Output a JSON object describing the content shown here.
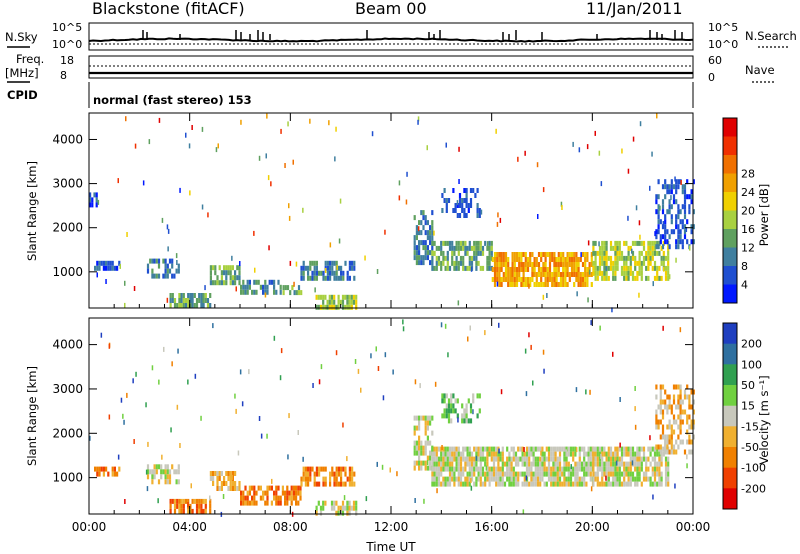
{
  "header": {
    "station": "Blackstone (fitACF)",
    "beam": "Beam 00",
    "date": "11/Jan/2011"
  },
  "top_panels": {
    "nsky_label": "N.Sky",
    "nsky_ticks": [
      "10^5",
      "10^0"
    ],
    "nsearch_label": "N.Search",
    "nsearch_ticks": [
      "10^5",
      "10^0"
    ],
    "freq_label": "Freq.",
    "freq_unit": "[MHz]",
    "freq_ticks": [
      "18",
      "8"
    ],
    "nave_label": "Nave",
    "nave_ticks": [
      "60",
      "0"
    ],
    "cpid_label": "CPID",
    "cpid_text": "normal (fast stereo) 153"
  },
  "chart_data": [
    {
      "type": "heatmap",
      "parameter": "power",
      "xlabel": "",
      "ylabel": "Slant Range [km]",
      "x_ticks": [
        "00:00",
        "04:00",
        "08:00",
        "12:00",
        "16:00",
        "20:00",
        "00:00"
      ],
      "xlim_hours": [
        0,
        24
      ],
      "y_ticks": [
        1000,
        2000,
        3000,
        4000
      ],
      "ylim": [
        180,
        4600
      ],
      "colorbar": {
        "label": "Power [dB]",
        "ticks": [
          "4",
          "8",
          "12",
          "16",
          "20",
          "24",
          "28"
        ],
        "colors": [
          "#0018ff",
          "#1f4fd0",
          "#3f7f9f",
          "#5fa05f",
          "#a8d040",
          "#f0d000",
          "#f0a000",
          "#f07000",
          "#f03000",
          "#e00000"
        ]
      },
      "features": [
        {
          "t0": 0.0,
          "t1": 0.3,
          "r0": 2500,
          "r1": 2800,
          "level": 1,
          "density": 0.5
        },
        {
          "t0": 0.2,
          "t1": 1.2,
          "r0": 1050,
          "r1": 1250,
          "level": 1,
          "density": 0.7
        },
        {
          "t0": 2.3,
          "t1": 3.6,
          "r0": 950,
          "r1": 1300,
          "level": 2,
          "density": 0.6
        },
        {
          "t0": 3.2,
          "t1": 4.8,
          "r0": 230,
          "r1": 520,
          "level": 3,
          "density": 0.8
        },
        {
          "t0": 4.8,
          "t1": 6.0,
          "r0": 700,
          "r1": 1150,
          "level": 3,
          "density": 0.7
        },
        {
          "t0": 6.0,
          "t1": 7.6,
          "r0": 480,
          "r1": 820,
          "level": 2,
          "density": 0.6
        },
        {
          "t0": 7.6,
          "t1": 8.4,
          "r0": 480,
          "r1": 700,
          "level": 3,
          "density": 0.7
        },
        {
          "t0": 8.4,
          "t1": 10.5,
          "r0": 800,
          "r1": 1250,
          "level": 2,
          "density": 0.6
        },
        {
          "t0": 9.0,
          "t1": 10.6,
          "r0": 250,
          "r1": 480,
          "level": 4,
          "density": 0.8
        },
        {
          "t0": 12.9,
          "t1": 13.6,
          "r0": 1200,
          "r1": 2400,
          "level": 2,
          "density": 0.6
        },
        {
          "t0": 13.6,
          "t1": 16.0,
          "r0": 1100,
          "r1": 1700,
          "level": 3,
          "density": 0.7
        },
        {
          "t0": 16.0,
          "t1": 20.0,
          "r0": 700,
          "r1": 1450,
          "level": 6,
          "density": 0.8
        },
        {
          "t0": 20.0,
          "t1": 23.0,
          "r0": 900,
          "r1": 1700,
          "level": 4,
          "density": 0.7
        },
        {
          "t0": 22.5,
          "t1": 24.0,
          "r0": 1600,
          "r1": 3100,
          "level": 1,
          "density": 0.5
        },
        {
          "t0": 14.0,
          "t1": 15.5,
          "r0": 2300,
          "r1": 2900,
          "level": 1,
          "density": 0.4
        }
      ]
    },
    {
      "type": "heatmap",
      "parameter": "velocity",
      "xlabel": "Time UT",
      "ylabel": "Slant Range [km]",
      "x_ticks": [
        "00:00",
        "04:00",
        "08:00",
        "12:00",
        "16:00",
        "20:00",
        "00:00"
      ],
      "xlim_hours": [
        0,
        24
      ],
      "y_ticks": [
        1000,
        2000,
        3000,
        4000
      ],
      "ylim": [
        180,
        4600
      ],
      "colorbar": {
        "label": "Velocity [m s⁻¹]",
        "ticks": [
          "200",
          "100",
          "50",
          "15",
          "-15",
          "-50",
          "-100",
          "-200"
        ],
        "colors": [
          "#1f3fc0",
          "#2f70a0",
          "#30a050",
          "#70d040",
          "#c8c8bc",
          "#f0b030",
          "#f08000",
          "#f04000",
          "#e00000"
        ]
      },
      "features": [
        {
          "t0": 0.2,
          "t1": 1.2,
          "r0": 1050,
          "r1": 1250,
          "level": 6,
          "density": 0.6
        },
        {
          "t0": 2.3,
          "t1": 3.6,
          "r0": 950,
          "r1": 1300,
          "level": 4,
          "density": 0.6
        },
        {
          "t0": 3.2,
          "t1": 4.8,
          "r0": 230,
          "r1": 520,
          "level": 6,
          "density": 0.8
        },
        {
          "t0": 4.8,
          "t1": 6.0,
          "r0": 700,
          "r1": 1150,
          "level": 5,
          "density": 0.7
        },
        {
          "t0": 6.0,
          "t1": 8.4,
          "r0": 480,
          "r1": 820,
          "level": 6,
          "density": 0.6
        },
        {
          "t0": 8.4,
          "t1": 10.5,
          "r0": 800,
          "r1": 1250,
          "level": 6,
          "density": 0.7
        },
        {
          "t0": 9.0,
          "t1": 10.6,
          "r0": 250,
          "r1": 480,
          "level": 4,
          "density": 0.6
        },
        {
          "t0": 12.9,
          "t1": 13.6,
          "r0": 1200,
          "r1": 2400,
          "level": 4,
          "density": 0.6
        },
        {
          "t0": 13.6,
          "t1": 20.0,
          "r0": 800,
          "r1": 1700,
          "level": 4,
          "density": 0.85
        },
        {
          "t0": 20.0,
          "t1": 23.0,
          "r0": 900,
          "r1": 1700,
          "level": 4,
          "density": 0.8
        },
        {
          "t0": 22.5,
          "t1": 24.0,
          "r0": 1600,
          "r1": 3100,
          "level": 5,
          "density": 0.5
        },
        {
          "t0": 14.0,
          "t1": 15.5,
          "r0": 2300,
          "r1": 2900,
          "level": 3,
          "density": 0.4
        }
      ]
    }
  ]
}
